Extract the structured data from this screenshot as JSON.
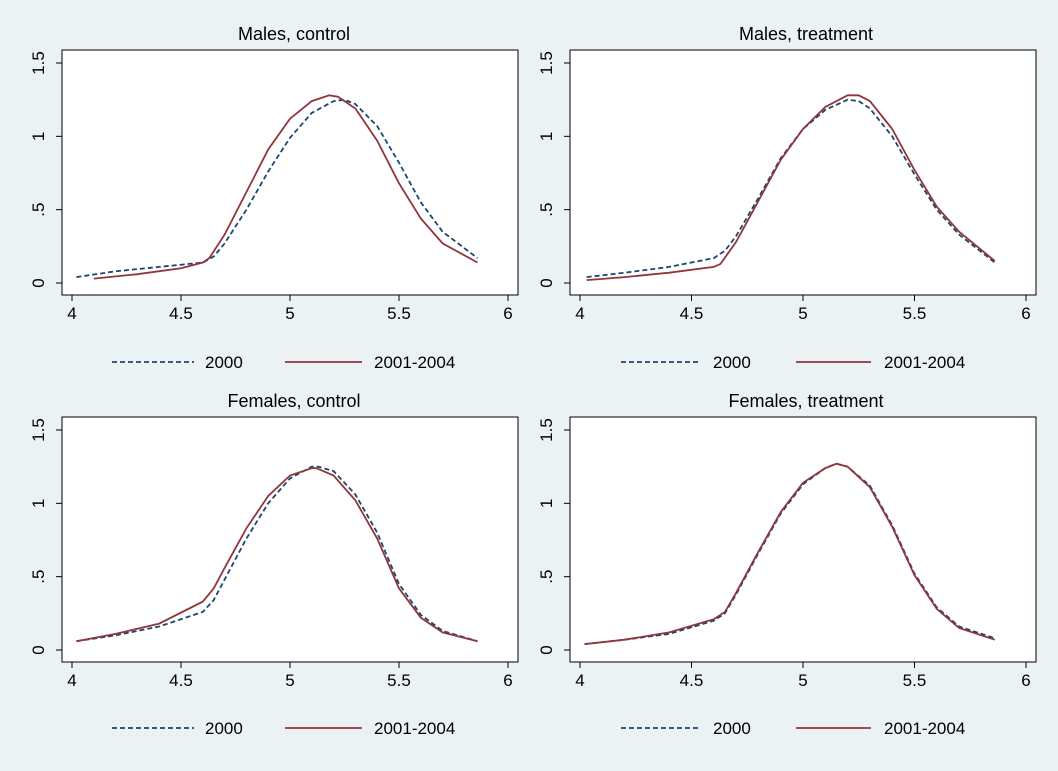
{
  "colors": {
    "background": "#eaf2f3",
    "plot_area": "#ffffff",
    "series_2000": "#1a476f",
    "series_2001_2004": "#90353b"
  },
  "chart_data": [
    {
      "type": "line",
      "title": "Males, control",
      "xlim": [
        4,
        6
      ],
      "ylim": [
        0,
        1.5
      ],
      "xticks": [
        "4",
        "4.5",
        "5",
        "5.5",
        "6"
      ],
      "yticks": [
        "0",
        ".5",
        "1",
        "1.5"
      ],
      "legend": "bottom",
      "series": [
        {
          "name": "2000",
          "style": "dashed",
          "x": [
            4.02,
            4.2,
            4.4,
            4.6,
            4.65,
            4.7,
            4.8,
            4.9,
            5.0,
            5.1,
            5.2,
            5.25,
            5.3,
            5.4,
            5.5,
            5.6,
            5.7,
            5.86
          ],
          "y": [
            0.04,
            0.08,
            0.11,
            0.14,
            0.18,
            0.27,
            0.5,
            0.76,
            0.99,
            1.16,
            1.24,
            1.25,
            1.22,
            1.07,
            0.82,
            0.55,
            0.35,
            0.17
          ]
        },
        {
          "name": "2001-2004",
          "style": "solid",
          "x": [
            4.1,
            4.3,
            4.5,
            4.6,
            4.63,
            4.7,
            4.8,
            4.9,
            5.0,
            5.1,
            5.18,
            5.22,
            5.3,
            5.4,
            5.5,
            5.6,
            5.7,
            5.86
          ],
          "y": [
            0.03,
            0.06,
            0.1,
            0.14,
            0.17,
            0.33,
            0.62,
            0.91,
            1.12,
            1.24,
            1.28,
            1.27,
            1.19,
            0.97,
            0.68,
            0.44,
            0.27,
            0.14
          ]
        }
      ]
    },
    {
      "type": "line",
      "title": "Males, treatment",
      "xlim": [
        4,
        6
      ],
      "ylim": [
        0,
        1.5
      ],
      "xticks": [
        "4",
        "4.5",
        "5",
        "5.5",
        "6"
      ],
      "yticks": [
        "0",
        ".5",
        "1",
        "1.5"
      ],
      "legend": "bottom",
      "series": [
        {
          "name": "2000",
          "style": "dashed",
          "x": [
            4.03,
            4.2,
            4.4,
            4.6,
            4.65,
            4.7,
            4.8,
            4.9,
            5.0,
            5.1,
            5.2,
            5.25,
            5.3,
            5.4,
            5.5,
            5.6,
            5.7,
            5.86
          ],
          "y": [
            0.04,
            0.07,
            0.11,
            0.17,
            0.22,
            0.32,
            0.58,
            0.85,
            1.05,
            1.18,
            1.25,
            1.24,
            1.19,
            1.0,
            0.74,
            0.5,
            0.33,
            0.14
          ]
        },
        {
          "name": "2001-2004",
          "style": "solid",
          "x": [
            4.03,
            4.2,
            4.4,
            4.6,
            4.63,
            4.7,
            4.8,
            4.9,
            5.0,
            5.1,
            5.2,
            5.25,
            5.3,
            5.4,
            5.5,
            5.6,
            5.7,
            5.86
          ],
          "y": [
            0.02,
            0.04,
            0.07,
            0.11,
            0.13,
            0.28,
            0.56,
            0.84,
            1.05,
            1.2,
            1.28,
            1.28,
            1.24,
            1.05,
            0.77,
            0.52,
            0.35,
            0.15
          ]
        }
      ]
    },
    {
      "type": "line",
      "title": "Females, control",
      "xlim": [
        4,
        6
      ],
      "ylim": [
        0,
        1.5
      ],
      "xticks": [
        "4",
        "4.5",
        "5",
        "5.5",
        "6"
      ],
      "yticks": [
        "0",
        ".5",
        "1",
        "1.5"
      ],
      "legend": "bottom",
      "series": [
        {
          "name": "2000",
          "style": "dashed",
          "x": [
            4.02,
            4.2,
            4.4,
            4.6,
            4.65,
            4.7,
            4.8,
            4.9,
            5.0,
            5.1,
            5.13,
            5.2,
            5.3,
            5.4,
            5.5,
            5.6,
            5.7,
            5.86
          ],
          "y": [
            0.06,
            0.1,
            0.16,
            0.26,
            0.34,
            0.48,
            0.76,
            1.0,
            1.17,
            1.25,
            1.25,
            1.22,
            1.06,
            0.8,
            0.45,
            0.24,
            0.13,
            0.06
          ]
        },
        {
          "name": "2001-2004",
          "style": "solid",
          "x": [
            4.02,
            4.2,
            4.4,
            4.6,
            4.65,
            4.7,
            4.8,
            4.9,
            5.0,
            5.1,
            5.12,
            5.2,
            5.3,
            5.4,
            5.5,
            5.6,
            5.7,
            5.86
          ],
          "y": [
            0.06,
            0.11,
            0.18,
            0.33,
            0.42,
            0.56,
            0.83,
            1.05,
            1.19,
            1.24,
            1.24,
            1.19,
            1.02,
            0.76,
            0.42,
            0.22,
            0.12,
            0.06
          ]
        }
      ]
    },
    {
      "type": "line",
      "title": "Females, treatment",
      "xlim": [
        4,
        6
      ],
      "ylim": [
        0,
        1.5
      ],
      "xticks": [
        "4",
        "4.5",
        "5",
        "5.5",
        "6"
      ],
      "yticks": [
        "0",
        ".5",
        "1",
        "1.5"
      ],
      "legend": "bottom",
      "series": [
        {
          "name": "2000",
          "style": "dashed",
          "x": [
            4.02,
            4.2,
            4.4,
            4.6,
            4.65,
            4.7,
            4.8,
            4.9,
            5.0,
            5.1,
            5.15,
            5.2,
            5.3,
            5.4,
            5.5,
            5.6,
            5.7,
            5.86
          ],
          "y": [
            0.04,
            0.07,
            0.11,
            0.2,
            0.25,
            0.38,
            0.66,
            0.93,
            1.13,
            1.24,
            1.27,
            1.25,
            1.12,
            0.85,
            0.52,
            0.29,
            0.16,
            0.08
          ]
        },
        {
          "name": "2001-2004",
          "style": "solid",
          "x": [
            4.02,
            4.2,
            4.4,
            4.6,
            4.65,
            4.7,
            4.8,
            4.9,
            5.0,
            5.1,
            5.15,
            5.2,
            5.3,
            5.4,
            5.5,
            5.6,
            5.7,
            5.86
          ],
          "y": [
            0.04,
            0.07,
            0.12,
            0.21,
            0.26,
            0.39,
            0.67,
            0.94,
            1.14,
            1.24,
            1.27,
            1.25,
            1.11,
            0.84,
            0.51,
            0.28,
            0.15,
            0.07
          ]
        }
      ]
    }
  ]
}
